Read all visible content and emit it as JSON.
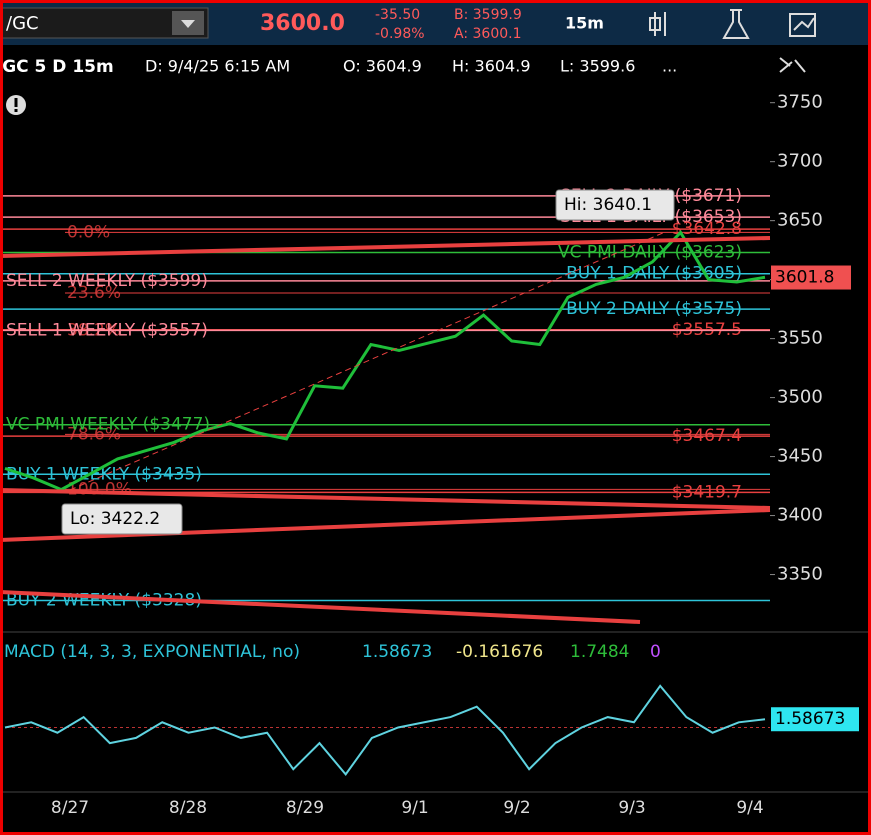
{
  "toolbar": {
    "symbol": "/GC",
    "last": "3600.0",
    "change": "-35.50",
    "change_pct": "-0.98%",
    "bid": "B: 3599.9",
    "ask": "A: 3600.1",
    "interval": "15m"
  },
  "info_bar": {
    "study": "/GC 5 D 15m",
    "date": "D: 9/4/25 6:15 AM",
    "open": "O: 3604.9",
    "high": "H: 3604.9",
    "low": "L: 3599.6",
    "more": "..."
  },
  "price_chart": {
    "ylim": [
      3303,
      3765
    ],
    "yticks": [
      3350,
      3400,
      3450,
      3500,
      3550,
      3600,
      3650,
      3700,
      3750
    ],
    "levels": [
      {
        "label": "SELL 2 DAILY ($3671)",
        "value": 3671,
        "color": "#ff8a9a",
        "side": "right"
      },
      {
        "label": "SELL 1 DAILY ($3653)",
        "value": 3653,
        "color": "#ff8a9a",
        "side": "right"
      },
      {
        "label": "$3642.8",
        "value": 3642.8,
        "color": "#e8403f",
        "side": "right"
      },
      {
        "label": "VC PMI DAILY ($3623)",
        "value": 3623,
        "color": "#2ebd3a",
        "side": "right"
      },
      {
        "label": "BUY 1 DAILY ($3605)",
        "value": 3605,
        "color": "#2ec4d9",
        "side": "right"
      },
      {
        "label": "SELL 2 WEEKLY ($3599)",
        "value": 3599,
        "color": "#ff8a9a",
        "side": "left"
      },
      {
        "label": "BUY 2 DAILY ($3575)",
        "value": 3575,
        "color": "#2ec4d9",
        "side": "right"
      },
      {
        "label": "$3557.5",
        "value": 3557.5,
        "color": "#e8403f",
        "side": "right"
      },
      {
        "label": "SELL 1 WEEKLY ($3557)",
        "value": 3557,
        "color": "#ff8a9a",
        "side": "left"
      },
      {
        "label": "VC PMI WEEKLY ($3477)",
        "value": 3477,
        "color": "#2ebd3a",
        "side": "left"
      },
      {
        "label": "$3467.4",
        "value": 3467.4,
        "color": "#e8403f",
        "side": "right"
      },
      {
        "label": "BUY 1 WEEKLY ($3435)",
        "value": 3435,
        "color": "#2ec4d9",
        "side": "left"
      },
      {
        "label": "$3419.7",
        "value": 3419.7,
        "color": "#e8403f",
        "side": "right"
      },
      {
        "label": "BUY 2 WEEKLY ($3328)",
        "value": 3328,
        "color": "#2ec4d9",
        "side": "left"
      }
    ],
    "fib_levels": [
      {
        "label": "0.0%",
        "value": 3640.1
      },
      {
        "label": "23.6%",
        "value": 3588.7
      },
      {
        "label": "38.2%",
        "value": 3556.9
      },
      {
        "label": "78.6%",
        "value": 3468.8
      },
      {
        "label": "100.0%",
        "value": 3422.2
      }
    ],
    "price": [
      3440,
      3432,
      3422,
      3435,
      3448,
      3455,
      3462,
      3472,
      3478,
      3470,
      3465,
      3510,
      3508,
      3545,
      3540,
      3546,
      3552,
      3570,
      3548,
      3545,
      3585,
      3596,
      3602,
      3615,
      3640,
      3600,
      3598,
      3602
    ],
    "current_price": 3601.8,
    "high_label": "Hi: 3640.1",
    "low_label": "Lo: 3422.2"
  },
  "macd": {
    "title": "MACD (14, 3, 3, EXPONENTIAL, no)",
    "value": 1.58673,
    "avg": -0.161676,
    "diff": 1.7484,
    "zero": 0,
    "ylim": [
      -12,
      12
    ],
    "values": [
      0,
      1,
      -1,
      2,
      -3,
      -2,
      1,
      -1,
      0,
      -2,
      -1,
      -8,
      -3,
      -9,
      -2,
      0,
      1,
      2,
      4,
      -1,
      -8,
      -3,
      0,
      2,
      1,
      8,
      2,
      -1,
      1,
      1.58673
    ]
  },
  "dates": [
    "8/27",
    "8/28",
    "8/29",
    "9/1",
    "9/2",
    "9/3",
    "9/4"
  ]
}
